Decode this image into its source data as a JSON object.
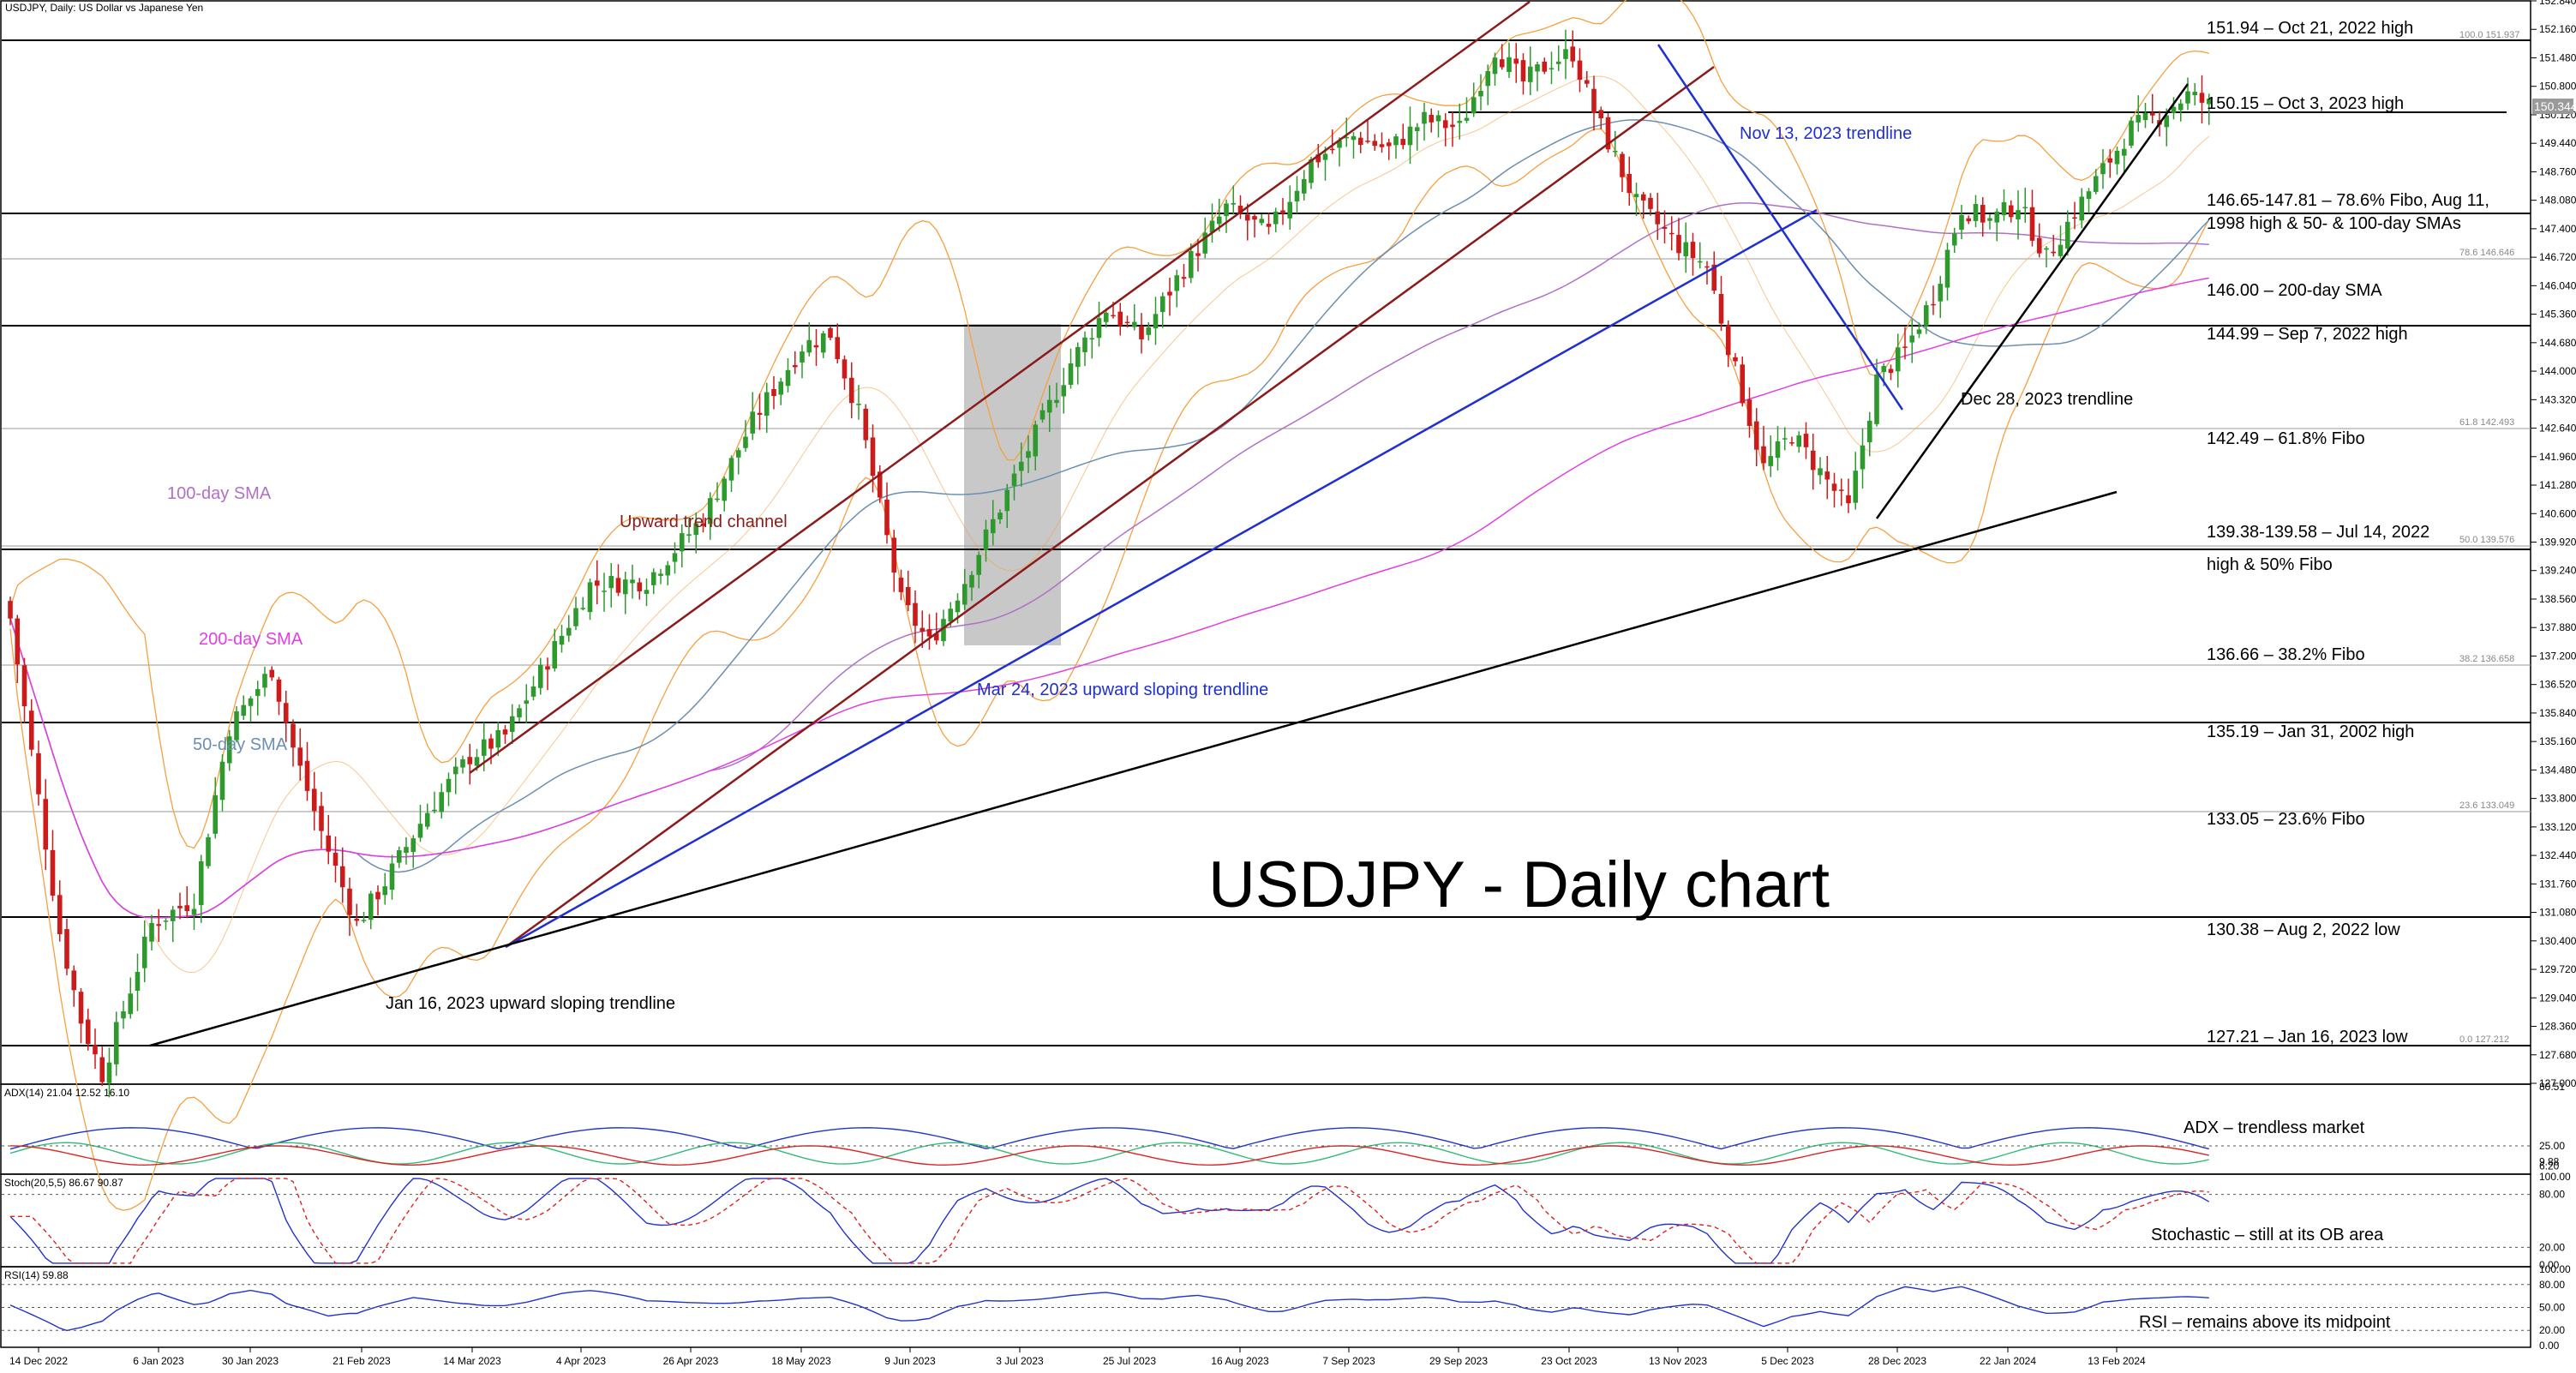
{
  "header": "USDJPY, Daily:  US Dollar vs Japanese Yen",
  "title": "USDJPY - Daily chart",
  "colors": {
    "bull": "#2e9a2e",
    "bear": "#cc1b1b",
    "sma50": "#6a8fb3",
    "sma100": "#b070c8",
    "sma200": "#e040e0",
    "bands": "#f5a040",
    "channel": "#8b1a1a",
    "blue_trend": "#1f2fd0",
    "black_trend": "#000000",
    "fibo_box": "#b5b5b5"
  },
  "chart_data": {
    "type": "candlestick",
    "x_ticks": [
      "14 Dec 2022",
      "6 Jan 2023",
      "30 Jan 2023",
      "21 Feb 2023",
      "14 Mar 2023",
      "4 Apr 2023",
      "26 Apr 2023",
      "18 May 2023",
      "9 Jun 2023",
      "3 Jul 2023",
      "25 Jul 2023",
      "16 Aug 2023",
      "7 Sep 2023",
      "29 Sep 2023",
      "23 Oct 2023",
      "13 Nov 2023",
      "5 Dec 2023",
      "28 Dec 2023",
      "22 Jan 2024",
      "13 Feb 2024"
    ],
    "y_ticks": [
      "152.840",
      "152.160",
      "151.480",
      "150.800",
      "150.120",
      "149.440",
      "148.760",
      "148.080",
      "147.400",
      "146.720",
      "146.040",
      "145.360",
      "144.680",
      "144.000",
      "143.320",
      "142.640",
      "141.960",
      "141.280",
      "140.600",
      "139.920",
      "139.240",
      "138.560",
      "137.880",
      "137.200",
      "136.520",
      "135.840",
      "135.160",
      "134.480",
      "133.800",
      "133.120",
      "132.440",
      "131.760",
      "131.080",
      "130.400",
      "129.720",
      "129.040",
      "128.360",
      "127.680",
      "127.000"
    ],
    "ylim": [
      127.0,
      152.84
    ],
    "last_price": "150.344",
    "key_points": [
      [
        0,
        138.1
      ],
      [
        7,
        130.6
      ],
      [
        10,
        128.5
      ],
      [
        13,
        127.21
      ],
      [
        20,
        130.8
      ],
      [
        26,
        131.4
      ],
      [
        31,
        135.5
      ],
      [
        37,
        136.9
      ],
      [
        40,
        135.0
      ],
      [
        44,
        133.0
      ],
      [
        49,
        130.8
      ],
      [
        53,
        131.8
      ],
      [
        59,
        133.5
      ],
      [
        65,
        134.8
      ],
      [
        70,
        135.3
      ],
      [
        75,
        136.8
      ],
      [
        82,
        138.9
      ],
      [
        90,
        139.0
      ],
      [
        98,
        140.5
      ],
      [
        105,
        142.8
      ],
      [
        112,
        144.6
      ],
      [
        116,
        144.9
      ],
      [
        120,
        143.0
      ],
      [
        126,
        138.5
      ],
      [
        130,
        137.5
      ],
      [
        135,
        139.0
      ],
      [
        143,
        141.8
      ],
      [
        150,
        144.2
      ],
      [
        155,
        145.5
      ],
      [
        160,
        144.8
      ],
      [
        165,
        146.2
      ],
      [
        172,
        147.9
      ],
      [
        178,
        147.3
      ],
      [
        184,
        149.0
      ],
      [
        190,
        149.6
      ],
      [
        195,
        149.3
      ],
      [
        200,
        150.0
      ],
      [
        205,
        149.8
      ],
      [
        210,
        151.7
      ],
      [
        214,
        150.9
      ],
      [
        218,
        151.4
      ],
      [
        221,
        151.6
      ],
      [
        224,
        150.2
      ],
      [
        230,
        148.0
      ],
      [
        236,
        147.0
      ],
      [
        240,
        146.5
      ],
      [
        244,
        144.0
      ],
      [
        248,
        141.7
      ],
      [
        252,
        142.5
      ],
      [
        256,
        141.6
      ],
      [
        260,
        140.7
      ],
      [
        264,
        143.8
      ],
      [
        268,
        144.5
      ],
      [
        272,
        145.8
      ],
      [
        276,
        147.9
      ],
      [
        280,
        147.6
      ],
      [
        284,
        148.0
      ],
      [
        288,
        146.7
      ],
      [
        292,
        147.8
      ],
      [
        296,
        148.8
      ],
      [
        300,
        149.8
      ],
      [
        304,
        150.1
      ],
      [
        308,
        150.6
      ],
      [
        311,
        150.35
      ]
    ],
    "indicator_data": {
      "adx": {
        "label": "ADX(14) 21.04 12.52 16.10",
        "ylim": [
          0,
          80.51
        ],
        "ticks": [
          "80.51",
          "25.00",
          "9.88",
          "6.20"
        ]
      },
      "stoch": {
        "label": "Stoch(20,5,5) 86.67 90.87",
        "ylim": [
          0,
          100
        ],
        "ticks": [
          "100.00",
          "80.00",
          "20.00",
          "0.00"
        ]
      },
      "rsi": {
        "label": "RSI(14) 59.88",
        "ylim": [
          0,
          100
        ],
        "ticks": [
          "100.00",
          "80.00",
          "50.00",
          "20.00",
          "0.00"
        ]
      }
    },
    "fibo_labels": [
      "100.0 151.937",
      "78.6 146.646",
      "61.8 142.493",
      "50.0 139.576",
      "38.2 136.658",
      "23.6 133.049",
      "0.0 127.212"
    ],
    "level_labels": [
      "151.94 – Oct 21, 2022 high",
      "150.15 – Oct 3, 2023 high",
      "146.65-147.81 – 78.6% Fibo, Aug 11,",
      "1998 high & 50- & 100-day SMAs",
      "146.00 – 200-day SMA",
      "144.99 – Sep 7, 2022 high",
      "142.49 – 61.8% Fibo",
      "139.38-139.58 – Jul 14, 2022",
      "high & 50% Fibo",
      "136.66 – 38.2% Fibo",
      "135.19 – Jan 31, 2002 high",
      "133.05 – 23.6% Fibo",
      "130.38 – Aug 2, 2022 low",
      "127.21 – Jan 16, 2023 low"
    ],
    "annotations": {
      "sma100": "100-day SMA",
      "sma200": "200-day SMA",
      "sma50": "50-day SMA",
      "channel": "Upward trend channel",
      "jan16": "Jan 16, 2023 upward sloping trendline",
      "mar24": "Mar 24, 2023 upward sloping trendline",
      "nov13": "Nov 13, 2023 trendline",
      "dec28": "Dec 28, 2023 trendline",
      "adx": "ADX – trendless market",
      "stoch": "Stochastic – still at its OB area",
      "rsi": "RSI – remains above its midpoint"
    }
  }
}
